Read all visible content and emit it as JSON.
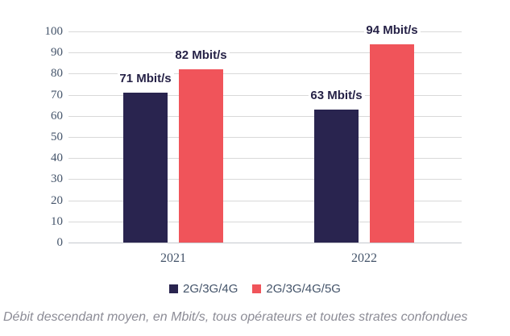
{
  "chart_data": {
    "type": "bar",
    "categories": [
      "2021",
      "2022"
    ],
    "series": [
      {
        "name": "2G/3G/4G",
        "color": "#29244F",
        "values": [
          71,
          63
        ],
        "data_labels": [
          "71 Mbit/s",
          "63 Mbit/s"
        ]
      },
      {
        "name": "2G/3G/4G/5G",
        "color": "#F0545A",
        "values": [
          82,
          94
        ],
        "data_labels": [
          "82 Mbit/s",
          "94 Mbit/s"
        ]
      }
    ],
    "title": "",
    "xlabel": "",
    "ylabel": "",
    "ylim": [
      0,
      100
    ],
    "yticks": [
      0,
      10,
      20,
      30,
      40,
      50,
      60,
      70,
      80,
      90,
      100
    ],
    "grid": true,
    "legend_position": "bottom",
    "unit": "Mbit/s"
  },
  "caption": "Débit descendant moyen, en Mbit/s, tous opérateurs et toutes strates confondues",
  "colors": {
    "bar_navy": "#29244F",
    "bar_coral": "#F0545A",
    "gridline": "#D9D9D9",
    "axis_text": "#44546A",
    "data_label_text": "#262247",
    "caption_text": "#8C8C96",
    "background": "#FFFFFF"
  }
}
